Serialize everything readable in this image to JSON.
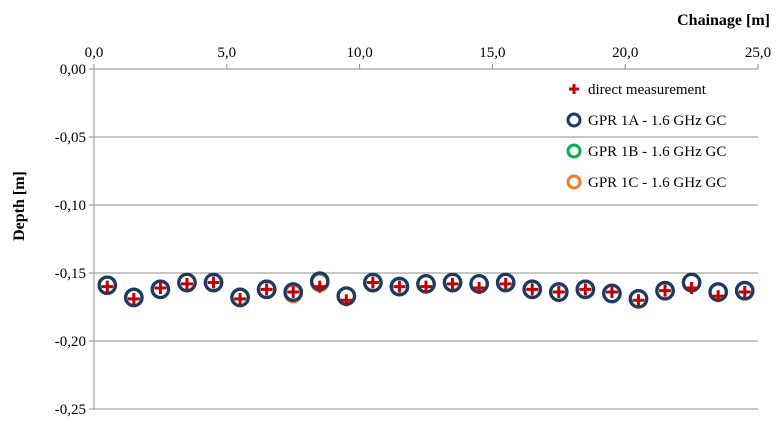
{
  "chart_data": {
    "type": "scatter",
    "xlabel": "Chainage [m]",
    "ylabel": "Depth [m]",
    "xlim": [
      0,
      25
    ],
    "ylim": [
      -0.25,
      0
    ],
    "x_ticks": [
      0,
      5,
      10,
      15,
      20,
      25
    ],
    "x_tick_labels": [
      "0,0",
      "5,0",
      "10,0",
      "15,0",
      "20,0",
      "25,0"
    ],
    "y_ticks": [
      0,
      -0.05,
      -0.1,
      -0.15,
      -0.2,
      -0.25
    ],
    "y_tick_labels": [
      "0,00",
      "-0,05",
      "-0,10",
      "-0,15",
      "-0,20",
      "-0,25"
    ],
    "x_axis_position": "top",
    "grid": "horizontal",
    "legend_position": "top-right",
    "x": [
      0.5,
      1.5,
      2.5,
      3.5,
      4.5,
      5.5,
      6.5,
      7.5,
      8.5,
      9.5,
      10.5,
      11.5,
      12.5,
      13.5,
      14.5,
      15.5,
      16.5,
      17.5,
      18.5,
      19.5,
      20.5,
      21.5,
      22.5,
      23.5,
      24.5
    ],
    "series": [
      {
        "name": "direct measurement",
        "marker": "plus",
        "color": "#c00000",
        "values": [
          -0.16,
          -0.169,
          -0.161,
          -0.158,
          -0.157,
          -0.169,
          -0.162,
          -0.164,
          -0.16,
          -0.17,
          -0.157,
          -0.16,
          -0.16,
          -0.158,
          -0.161,
          -0.158,
          -0.162,
          -0.164,
          -0.162,
          -0.164,
          -0.17,
          -0.163,
          -0.161,
          -0.167,
          -0.164
        ]
      },
      {
        "name": "GPR 1A - 1.6 GHz GC",
        "marker": "ring",
        "color": "#1f3864",
        "values": [
          -0.159,
          -0.168,
          -0.162,
          -0.157,
          -0.157,
          -0.168,
          -0.162,
          -0.164,
          -0.156,
          -0.167,
          -0.157,
          -0.16,
          -0.158,
          -0.157,
          -0.158,
          -0.157,
          -0.162,
          -0.164,
          -0.162,
          -0.165,
          -0.169,
          -0.163,
          -0.157,
          -0.164,
          -0.163
        ]
      },
      {
        "name": "GPR 1B - 1.6 GHz GC",
        "marker": "ring",
        "color": "#00b050",
        "values": [
          -0.159,
          -0.168,
          -0.162,
          -0.157,
          -0.157,
          -0.168,
          -0.162,
          -0.164,
          -0.156,
          -0.167,
          -0.157,
          -0.16,
          -0.158,
          -0.157,
          -0.158,
          -0.157,
          -0.162,
          -0.164,
          -0.162,
          -0.165,
          -0.169,
          -0.163,
          -0.157,
          -0.164,
          -0.163
        ]
      },
      {
        "name": "GPR 1C - 1.6 GHz GC",
        "marker": "ring",
        "color": "#ed7d31",
        "values": [
          -0.159,
          -0.168,
          -0.162,
          -0.157,
          -0.157,
          -0.168,
          -0.162,
          -0.165,
          -0.157,
          -0.167,
          -0.157,
          -0.16,
          -0.158,
          -0.157,
          -0.158,
          -0.157,
          -0.162,
          -0.164,
          -0.162,
          -0.165,
          -0.169,
          -0.163,
          -0.157,
          -0.164,
          -0.163
        ]
      }
    ]
  }
}
